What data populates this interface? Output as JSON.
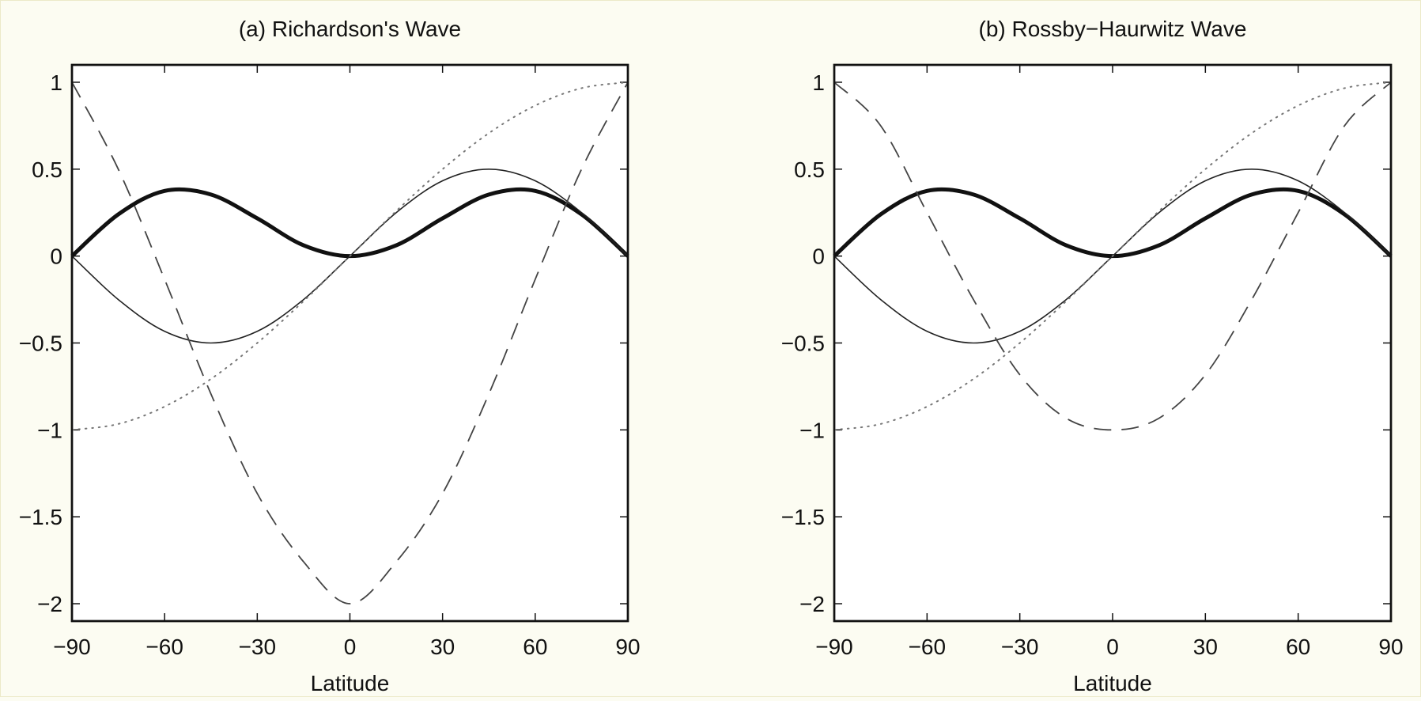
{
  "figure": {
    "background": "#fcfcf2",
    "ink": "#111111"
  },
  "chart_data": [
    {
      "type": "line",
      "title": "(a) Richardson's Wave",
      "xlabel": "Latitude",
      "ylabel": "",
      "xlim": [
        -90,
        90
      ],
      "ylim": [
        -2.1,
        1.1
      ],
      "xticks": [
        -90,
        -60,
        -30,
        0,
        30,
        60,
        90
      ],
      "xtick_labels": [
        "−90",
        "−60",
        "−30",
        "0",
        "30",
        "60",
        "90"
      ],
      "yticks": [
        1,
        0.5,
        0,
        -0.5,
        -1,
        -1.5,
        -2
      ],
      "ytick_labels": [
        "1",
        "0.5",
        "0",
        "−0.5",
        "−1",
        "−1.5",
        "−2"
      ],
      "grid": false,
      "legend": "none",
      "x": [
        -90,
        -75,
        -60,
        -45,
        -30,
        -15,
        0,
        15,
        30,
        45,
        60,
        75,
        90
      ],
      "series": [
        {
          "style": "thick-solid",
          "values": [
            0,
            0.24,
            0.375,
            0.354,
            0.217,
            0.062,
            0,
            0.062,
            0.217,
            0.354,
            0.375,
            0.24,
            0
          ]
        },
        {
          "style": "thin-solid",
          "values": [
            0,
            -0.25,
            -0.433,
            -0.5,
            -0.433,
            -0.25,
            0,
            0.25,
            0.433,
            0.5,
            0.433,
            0.25,
            0
          ]
        },
        {
          "style": "dotted",
          "values": [
            -1,
            -0.966,
            -0.866,
            -0.707,
            -0.5,
            -0.259,
            0,
            0.259,
            0.5,
            0.707,
            0.866,
            0.966,
            1
          ]
        },
        {
          "style": "dashed",
          "values": [
            1,
            0.5,
            -0.134,
            -0.793,
            -1.366,
            -1.759,
            -2,
            -1.759,
            -1.366,
            -0.793,
            -0.134,
            0.5,
            1
          ]
        }
      ]
    },
    {
      "type": "line",
      "title": "(b) Rossby−Haurwitz Wave",
      "xlabel": "Latitude",
      "ylabel": "",
      "xlim": [
        -90,
        90
      ],
      "ylim": [
        -2.1,
        1.1
      ],
      "xticks": [
        -90,
        -60,
        -30,
        0,
        30,
        60,
        90
      ],
      "xtick_labels": [
        "−90",
        "−60",
        "−30",
        "0",
        "30",
        "60",
        "90"
      ],
      "yticks": [
        1,
        0.5,
        0,
        -0.5,
        -1,
        -1.5,
        -2
      ],
      "ytick_labels": [
        "1",
        "0.5",
        "0",
        "−0.5",
        "−1",
        "−1.5",
        "−2"
      ],
      "grid": false,
      "legend": "none",
      "x": [
        -90,
        -75,
        -60,
        -45,
        -30,
        -15,
        0,
        15,
        30,
        45,
        60,
        75,
        90
      ],
      "series": [
        {
          "style": "thick-solid",
          "values": [
            0,
            0.24,
            0.375,
            0.354,
            0.217,
            0.062,
            0,
            0.062,
            0.217,
            0.354,
            0.375,
            0.24,
            0
          ]
        },
        {
          "style": "thin-solid",
          "values": [
            0,
            -0.25,
            -0.433,
            -0.5,
            -0.433,
            -0.25,
            0,
            0.25,
            0.433,
            0.5,
            0.433,
            0.25,
            0
          ]
        },
        {
          "style": "dotted",
          "values": [
            -1,
            -0.966,
            -0.866,
            -0.707,
            -0.5,
            -0.259,
            0,
            0.259,
            0.5,
            0.707,
            0.866,
            0.966,
            1
          ]
        },
        {
          "style": "dashed",
          "values": [
            1,
            0.75,
            0.25,
            -0.25,
            -0.683,
            -0.933,
            -1,
            -0.933,
            -0.683,
            -0.25,
            0.25,
            0.75,
            1
          ]
        }
      ]
    }
  ]
}
